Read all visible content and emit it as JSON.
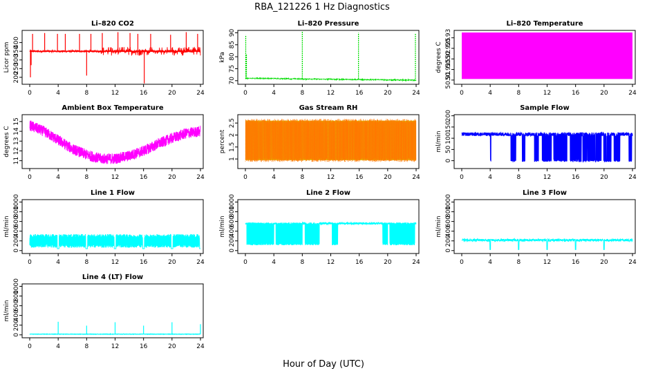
{
  "figure": {
    "title": "RBA_121226  1 Hz Diagnostics",
    "xlabel": "Hour of Day (UTC)"
  },
  "chart_data": [
    {
      "id": "co2",
      "type": "line",
      "title": "Li–820 CO2",
      "ylabel": "Licor ppm",
      "color": "#ff0000",
      "xlim": [
        0,
        24
      ],
      "xticks": [
        0,
        4,
        8,
        12,
        16,
        20,
        24
      ],
      "ylim": [
        160,
        470
      ],
      "yticks": [
        200,
        250,
        300,
        350,
        400
      ],
      "baseline": 350,
      "noise": 6,
      "spikes": [
        {
          "x": 0.1,
          "y": 200
        },
        {
          "x": 0.2,
          "y": 270
        },
        {
          "x": 0.4,
          "y": 450
        },
        {
          "x": 2.1,
          "y": 455
        },
        {
          "x": 3.9,
          "y": 450
        },
        {
          "x": 5.0,
          "y": 450
        },
        {
          "x": 7.0,
          "y": 450
        },
        {
          "x": 8.0,
          "y": 210
        },
        {
          "x": 8.6,
          "y": 450
        },
        {
          "x": 10.2,
          "y": 455
        },
        {
          "x": 12.4,
          "y": 460
        },
        {
          "x": 14.1,
          "y": 455
        },
        {
          "x": 15.2,
          "y": 450
        },
        {
          "x": 16.1,
          "y": 165
        },
        {
          "x": 17.0,
          "y": 450
        },
        {
          "x": 19.8,
          "y": 445
        },
        {
          "x": 22.0,
          "y": 460
        },
        {
          "x": 23.6,
          "y": 450
        }
      ],
      "band": {
        "from": 10,
        "to": 24,
        "amplitude": 25
      }
    },
    {
      "id": "pressure",
      "type": "line",
      "title": "Li–820 Pressure",
      "ylabel": "kPa",
      "color": "#00dd00",
      "xlim": [
        0,
        24
      ],
      "xticks": [
        0,
        4,
        8,
        12,
        16,
        20,
        24
      ],
      "ylim": [
        68.5,
        91
      ],
      "yticks": [
        70,
        75,
        80,
        85,
        90
      ],
      "base_start": 71.0,
      "base_end": 70.2,
      "noise": 0.3,
      "spikes": [
        {
          "x": 0.05,
          "y": 89
        },
        {
          "x": 0.15,
          "y": 81
        },
        {
          "x": 8.0,
          "y": 90.5
        },
        {
          "x": 15.9,
          "y": 90.0
        },
        {
          "x": 23.9,
          "y": 89.8
        }
      ]
    },
    {
      "id": "licor_temp",
      "type": "area",
      "title": "Li–820 Temperature",
      "ylabel": "degrees C",
      "color": "#ff00ff",
      "xlim": [
        0,
        24
      ],
      "xticks": [
        0,
        4,
        8,
        12,
        16,
        20,
        24
      ],
      "ylim": [
        50.908,
        50.9335
      ],
      "yticks": [
        50.91,
        50.915,
        50.92,
        50.925,
        50.93
      ],
      "low": 50.9105,
      "high": 50.9325
    },
    {
      "id": "ambient_temp",
      "type": "line",
      "title": "Ambient Box Temperature",
      "ylabel": "degrees C",
      "color": "#ff00ff",
      "xlim": [
        0,
        24
      ],
      "xticks": [
        0,
        4,
        8,
        12,
        16,
        20,
        24
      ],
      "ylim": [
        10.2,
        15.7
      ],
      "yticks": [
        11,
        12,
        13,
        14,
        15
      ],
      "curve": [
        [
          0,
          14.6
        ],
        [
          2,
          14.0
        ],
        [
          4,
          13.1
        ],
        [
          6,
          12.2
        ],
        [
          8,
          11.6
        ],
        [
          10,
          11.2
        ],
        [
          12,
          11.2
        ],
        [
          14,
          11.5
        ],
        [
          16,
          12.0
        ],
        [
          18,
          12.7
        ],
        [
          20,
          13.3
        ],
        [
          22,
          13.8
        ],
        [
          24,
          14.0
        ]
      ],
      "noise": 0.55
    },
    {
      "id": "rh",
      "type": "line",
      "title": "Gas Stream RH",
      "ylabel": "percent",
      "color": "#ff7700",
      "color2": "#ddbb00",
      "xlim": [
        0,
        24
      ],
      "xticks": [
        0,
        4,
        8,
        12,
        16,
        20,
        24
      ],
      "ylim": [
        0.6,
        2.85
      ],
      "yticks": [
        1.0,
        1.5,
        2.0,
        2.5
      ],
      "low": 0.95,
      "high": 2.6
    },
    {
      "id": "sample_flow",
      "type": "line",
      "title": "Sample Flow",
      "ylabel": "ml/min",
      "color": "#0000ff",
      "xlim": [
        0,
        24
      ],
      "xticks": [
        0,
        4,
        8,
        12,
        16,
        20,
        24
      ],
      "ylim": [
        -35,
        205
      ],
      "yticks": [
        0,
        50,
        100,
        150,
        200
      ],
      "baseline": 118,
      "noise": 8,
      "drop_windows": [
        [
          4.0,
          4.1
        ],
        [
          6.9,
          7.6
        ],
        [
          8.5,
          8.9
        ],
        [
          10.2,
          10.8
        ],
        [
          11.3,
          12.6
        ],
        [
          12.9,
          14.8
        ],
        [
          15.2,
          16.8
        ],
        [
          17.0,
          19.6
        ],
        [
          19.9,
          21.0
        ],
        [
          21.4,
          22.3
        ],
        [
          23.5,
          23.9
        ]
      ],
      "drop_value": -5
    },
    {
      "id": "line1",
      "type": "line",
      "title": "Line 1 Flow",
      "ylabel": "ml/min",
      "color": "#00ffff",
      "xlim": [
        0,
        24
      ],
      "xticks": [
        0,
        4,
        8,
        12,
        16,
        20,
        24
      ],
      "ylim": [
        -60,
        1050
      ],
      "yticks": [
        0,
        200,
        400,
        600,
        800,
        1000
      ],
      "low": 60,
      "high": 340,
      "gaps": [
        4.0,
        8.0,
        12.0,
        16.0,
        20.0,
        24.0
      ]
    },
    {
      "id": "line2",
      "type": "line",
      "title": "Line 2 Flow",
      "ylabel": "ml/min",
      "color": "#00ffff",
      "xlim": [
        0,
        24
      ],
      "xticks": [
        0,
        4,
        8,
        12,
        16,
        20,
        24
      ],
      "ylim": [
        -60,
        1050
      ],
      "yticks": [
        0,
        200,
        400,
        600,
        800,
        1000
      ],
      "top": 560,
      "bottom": 110,
      "dense_windows": [
        [
          0.2,
          4.0
        ],
        [
          4.3,
          8.0
        ],
        [
          8.4,
          10.4
        ],
        [
          12.2,
          13.0
        ],
        [
          19.3,
          20.0
        ],
        [
          20.3,
          23.8
        ]
      ]
    },
    {
      "id": "line3",
      "type": "line",
      "title": "Line 3 Flow",
      "ylabel": "ml/min",
      "color": "#00ffff",
      "xlim": [
        0,
        24
      ],
      "xticks": [
        0,
        4,
        8,
        12,
        16,
        20,
        24
      ],
      "ylim": [
        -60,
        1050
      ],
      "yticks": [
        0,
        200,
        400,
        600,
        800,
        1000
      ],
      "baseline": 215,
      "noise": 25,
      "dips": [
        4.0,
        8.0,
        12.0,
        16.0,
        20.0
      ]
    },
    {
      "id": "line4",
      "type": "line",
      "title": "Line 4 (LT) Flow",
      "ylabel": "ml/min",
      "color": "#00ffff",
      "xlim": [
        0,
        24
      ],
      "xticks": [
        0,
        4,
        8,
        12,
        16,
        20,
        24
      ],
      "ylim": [
        -60,
        1050
      ],
      "yticks": [
        0,
        200,
        400,
        600,
        800,
        1000
      ],
      "baseline": 15,
      "spikes": [
        {
          "x": 4.0,
          "y": 270
        },
        {
          "x": 8.0,
          "y": 190
        },
        {
          "x": 12.0,
          "y": 260
        },
        {
          "x": 16.0,
          "y": 190
        },
        {
          "x": 20.0,
          "y": 260
        },
        {
          "x": 24.0,
          "y": 220
        }
      ]
    }
  ]
}
